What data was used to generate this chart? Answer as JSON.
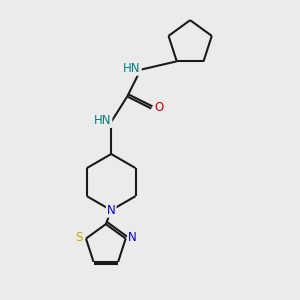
{
  "background_color": "#ebebeb",
  "bond_color": "#1a1a1a",
  "N_color": "#0000cc",
  "O_color": "#cc0000",
  "S_color": "#ccaa00",
  "NH_color": "#008080",
  "line_width": 1.5,
  "figsize": [
    3.0,
    3.0
  ],
  "dpi": 100,
  "xlim": [
    0,
    10
  ],
  "ylim": [
    0,
    11
  ]
}
